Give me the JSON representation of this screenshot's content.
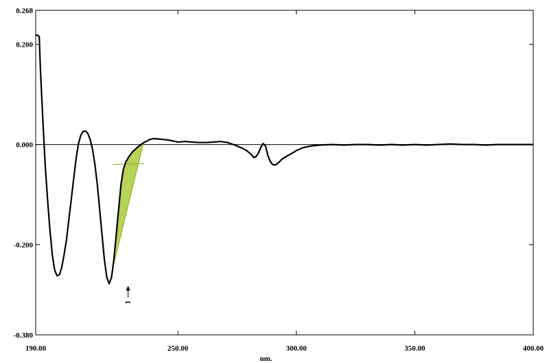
{
  "chart_data": {
    "type": "line",
    "title": "",
    "xlabel": "nm.",
    "ylabel": "",
    "xlim": [
      190.0,
      400.0
    ],
    "ylim": [
      -0.38,
      0.268
    ],
    "x_ticks": [
      190.0,
      250.0,
      300.0,
      350.0,
      400.0
    ],
    "x_tick_labels": [
      "190.00",
      "250.00",
      "300.00",
      "350.00",
      "400.00"
    ],
    "y_ticks": [
      0.268,
      0.2,
      0.0,
      -0.2,
      -0.38
    ],
    "y_tick_labels": [
      "0.268",
      "0.200",
      "0.000",
      "-0.200",
      "-0.380"
    ],
    "grid": false,
    "baseline": 0.0,
    "line_color": "#000000",
    "fill_color": "#c6e06a",
    "fill_stroke": "#8aa81e",
    "series": [
      {
        "x": [
          190.0,
          190.5,
          191.0,
          191.5,
          192.0,
          193.0,
          194.0,
          195.0,
          196.0,
          197.0,
          198.0,
          199.0,
          200.0,
          201.0,
          202.0,
          203.0,
          204.0,
          205.0,
          206.0,
          207.0,
          208.0,
          209.0,
          210.0,
          211.0,
          212.0,
          213.0,
          214.0,
          215.0,
          216.0,
          217.0,
          218.0,
          219.0,
          220.0,
          221.0,
          222.0,
          223.0,
          224.0,
          225.0,
          226.0,
          227.0,
          228.0,
          229.0,
          230.0,
          231.0,
          232.0,
          233.0,
          234.0,
          235.0,
          236.0,
          237.0,
          238.0,
          239.0,
          240.0,
          242.0,
          244.0,
          246.0,
          248.0,
          250.0,
          253.0,
          256.0,
          259.0,
          262.0,
          265.0,
          268.0,
          271.0,
          274.0,
          277.0,
          279.0,
          281.0,
          282.0,
          283.0,
          284.0,
          285.0,
          286.0,
          287.0,
          288.0,
          289.0,
          290.0,
          291.0,
          292.0,
          293.0,
          294.0,
          296.0,
          298.0,
          300.0,
          303.0,
          306.0,
          310.0,
          315.0,
          320.0,
          325.0,
          330.0,
          335.0,
          340.0,
          345.0,
          350.0,
          355.0,
          360.0,
          365.0,
          370.0,
          375.0,
          380.0,
          385.0,
          390.0,
          395.0,
          400.0
        ],
        "y": [
          0.218,
          0.218,
          0.218,
          0.215,
          0.15,
          0.05,
          -0.04,
          -0.11,
          -0.17,
          -0.22,
          -0.25,
          -0.262,
          -0.26,
          -0.245,
          -0.22,
          -0.19,
          -0.15,
          -0.11,
          -0.07,
          -0.03,
          0.0,
          0.018,
          0.026,
          0.027,
          0.022,
          0.01,
          -0.01,
          -0.04,
          -0.08,
          -0.13,
          -0.18,
          -0.23,
          -0.265,
          -0.278,
          -0.265,
          -0.23,
          -0.18,
          -0.13,
          -0.08,
          -0.05,
          -0.035,
          -0.027,
          -0.02,
          -0.014,
          -0.01,
          -0.005,
          -0.002,
          0.002,
          0.005,
          0.007,
          0.01,
          0.011,
          0.012,
          0.011,
          0.01,
          0.009,
          0.007,
          0.005,
          0.006,
          0.005,
          0.004,
          0.004,
          0.005,
          0.006,
          0.004,
          -0.001,
          -0.007,
          -0.012,
          -0.02,
          -0.026,
          -0.024,
          -0.017,
          -0.006,
          0.002,
          -0.003,
          -0.022,
          -0.034,
          -0.04,
          -0.041,
          -0.038,
          -0.034,
          -0.029,
          -0.023,
          -0.018,
          -0.012,
          -0.006,
          -0.003,
          -0.001,
          0.0,
          -0.001,
          0.0,
          0.0,
          -0.001,
          0.0,
          -0.001,
          0.0,
          -0.001,
          0.0,
          0.001,
          0.0,
          0.0,
          -0.001,
          0.0,
          0.0,
          0.0,
          0.0
        ]
      }
    ],
    "shaded_peak": {
      "x_start": 222.5,
      "x_end": 235.5,
      "baseline_start": -0.04,
      "baseline_end": -0.038
    },
    "annotations": [
      {
        "label": "1",
        "x": 229.0,
        "y": -0.278
      }
    ]
  }
}
